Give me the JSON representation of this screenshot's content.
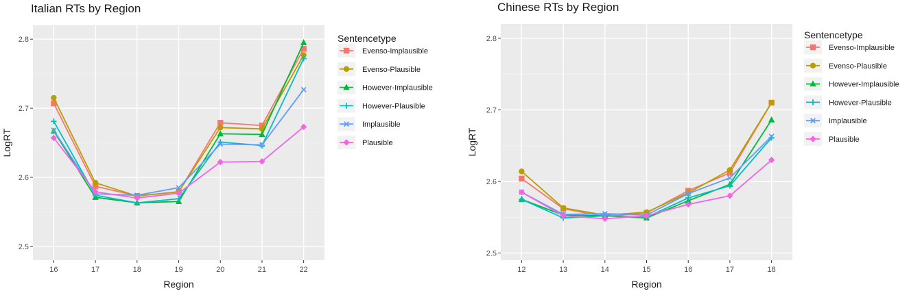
{
  "chart_data": [
    {
      "type": "line",
      "title": "Italian RTs by Region",
      "xlabel": "Region",
      "ylabel": "LogRT",
      "x": [
        16,
        17,
        18,
        19,
        20,
        21,
        22
      ],
      "ylim": [
        2.48,
        2.82
      ],
      "yticks": [
        2.5,
        2.6,
        2.7,
        2.8
      ],
      "grid": true,
      "legend_title": "Sentencetype",
      "legend_position": "right",
      "series": [
        {
          "name": "Evenso-Implausible",
          "color": "#F8766D",
          "marker": "square",
          "values": [
            2.707,
            2.587,
            2.573,
            2.579,
            2.679,
            2.675,
            2.786
          ]
        },
        {
          "name": "Evenso-Plausible",
          "color": "#B79F00",
          "marker": "circle",
          "values": [
            2.715,
            2.592,
            2.573,
            2.579,
            2.672,
            2.67,
            2.777
          ]
        },
        {
          "name": "However-Implausible",
          "color": "#00BA38",
          "marker": "triangle",
          "values": [
            2.667,
            2.571,
            2.563,
            2.565,
            2.663,
            2.662,
            2.795
          ]
        },
        {
          "name": "However-Plausible",
          "color": "#00BFC4",
          "marker": "plus",
          "values": [
            2.681,
            2.574,
            2.563,
            2.569,
            2.651,
            2.646,
            2.772
          ]
        },
        {
          "name": "Implausible",
          "color": "#619CFF",
          "marker": "cross",
          "values": [
            2.668,
            2.576,
            2.574,
            2.585,
            2.648,
            2.647,
            2.727
          ]
        },
        {
          "name": "Plausible",
          "color": "#F564E3",
          "marker": "diamond",
          "values": [
            2.657,
            2.579,
            2.57,
            2.577,
            2.622,
            2.623,
            2.673
          ]
        }
      ]
    },
    {
      "type": "line",
      "title": "Chinese RTs by Region",
      "xlabel": "Region",
      "ylabel": "LogRT",
      "x": [
        12,
        13,
        14,
        15,
        16,
        17,
        18
      ],
      "ylim": [
        2.49,
        2.82
      ],
      "yticks": [
        2.5,
        2.6,
        2.7,
        2.8
      ],
      "grid": true,
      "legend_title": "Sentencetype",
      "legend_position": "right",
      "series": [
        {
          "name": "Evenso-Implausible",
          "color": "#F8766D",
          "marker": "square",
          "values": [
            2.604,
            2.562,
            2.551,
            2.556,
            2.587,
            2.612,
            2.71
          ]
        },
        {
          "name": "Evenso-Plausible",
          "color": "#B79F00",
          "marker": "circle",
          "values": [
            2.614,
            2.563,
            2.553,
            2.557,
            2.584,
            2.616,
            2.71
          ]
        },
        {
          "name": "However-Implausible",
          "color": "#00BA38",
          "marker": "triangle",
          "values": [
            2.575,
            2.553,
            2.552,
            2.549,
            2.573,
            2.596,
            2.686
          ]
        },
        {
          "name": "However-Plausible",
          "color": "#00BFC4",
          "marker": "plus",
          "values": [
            2.575,
            2.549,
            2.552,
            2.55,
            2.577,
            2.594,
            2.661
          ]
        },
        {
          "name": "Implausible",
          "color": "#619CFF",
          "marker": "cross",
          "values": [
            2.585,
            2.554,
            2.555,
            2.553,
            2.583,
            2.605,
            2.663
          ]
        },
        {
          "name": "Plausible",
          "color": "#F564E3",
          "marker": "diamond",
          "values": [
            2.585,
            2.552,
            2.548,
            2.552,
            2.568,
            2.58,
            2.63
          ]
        }
      ]
    }
  ]
}
